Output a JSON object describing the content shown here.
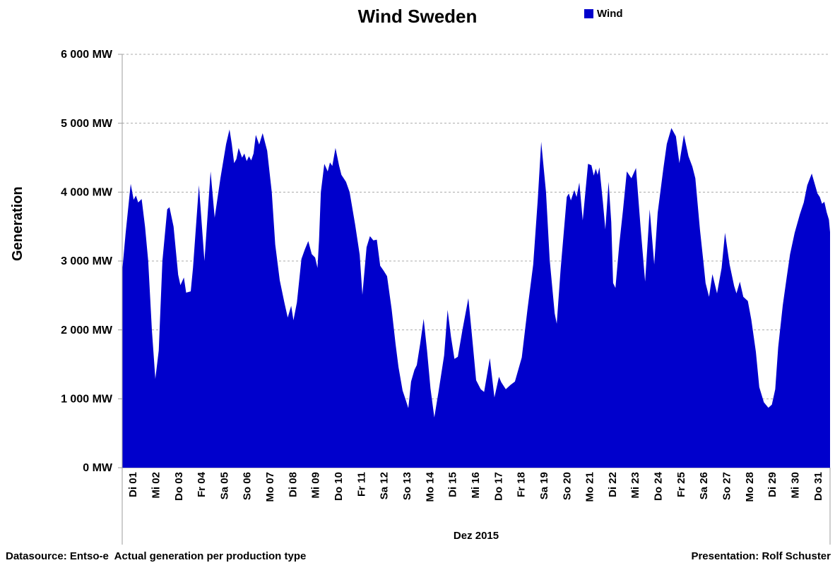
{
  "header": {
    "title": "Wind Sweden"
  },
  "legend": {
    "label": "Wind",
    "color": "#0000cc"
  },
  "y_axis": {
    "label": "Generation",
    "ticks": [
      "6 000 MW",
      "5 000 MW",
      "4 000 MW",
      "3 000 MW",
      "2 000 MW",
      "1 000 MW",
      "0 MW"
    ]
  },
  "x_axis": {
    "month_label": "Dez 2015",
    "days": [
      "Di 01",
      "Mi 02",
      "Do 03",
      "Fr 04",
      "Sa 05",
      "So 06",
      "Mo 07",
      "Di 08",
      "Mi 09",
      "Do 10",
      "Fr 11",
      "Sa 12",
      "So 13",
      "Mo 14",
      "Di 15",
      "Mi 16",
      "Do 17",
      "Fr 18",
      "Sa 19",
      "So 20",
      "Mo 21",
      "Di 22",
      "Mi 23",
      "Do 24",
      "Fr 25",
      "Sa 26",
      "So 27",
      "Mo 28",
      "Di 29",
      "Mi 30",
      "Do 31"
    ]
  },
  "footer": {
    "left": "Datasource: Entso-e  Actual generation per production type",
    "right": "Presentation: Rolf Schuster"
  },
  "colors": {
    "area": "#0000cc",
    "gridline": "#ababab",
    "axis": "#9d9d9d",
    "text": "#000000"
  },
  "chart_data": {
    "type": "area",
    "title": "Wind Sweden",
    "xlabel": "Dez 2015",
    "ylabel": "Generation",
    "ylim": [
      0,
      6000
    ],
    "xlim_days": [
      0,
      31
    ],
    "grid": "horizontal-dashed",
    "legend_position": "top-right",
    "unit": "MW",
    "series": [
      {
        "name": "Wind",
        "color": "#0000cc",
        "x_unit": "fractional day of Dez 2015 (0 = start of Di 01)",
        "points": [
          [
            0.0,
            2850
          ],
          [
            0.15,
            3400
          ],
          [
            0.37,
            4120
          ],
          [
            0.5,
            3890
          ],
          [
            0.6,
            3950
          ],
          [
            0.7,
            3850
          ],
          [
            0.85,
            3900
          ],
          [
            1.0,
            3500
          ],
          [
            1.14,
            3000
          ],
          [
            1.3,
            2000
          ],
          [
            1.45,
            1290
          ],
          [
            1.6,
            1700
          ],
          [
            1.76,
            3000
          ],
          [
            1.97,
            3750
          ],
          [
            2.07,
            3780
          ],
          [
            2.25,
            3500
          ],
          [
            2.45,
            2800
          ],
          [
            2.55,
            2650
          ],
          [
            2.7,
            2760
          ],
          [
            2.8,
            2540
          ],
          [
            3.0,
            2560
          ],
          [
            3.1,
            2900
          ],
          [
            3.36,
            4100
          ],
          [
            3.6,
            3000
          ],
          [
            3.87,
            4300
          ],
          [
            4.05,
            3630
          ],
          [
            4.3,
            4200
          ],
          [
            4.55,
            4700
          ],
          [
            4.7,
            4910
          ],
          [
            4.8,
            4700
          ],
          [
            4.9,
            4420
          ],
          [
            5.0,
            4480
          ],
          [
            5.1,
            4640
          ],
          [
            5.25,
            4500
          ],
          [
            5.35,
            4560
          ],
          [
            5.45,
            4450
          ],
          [
            5.55,
            4520
          ],
          [
            5.65,
            4460
          ],
          [
            5.75,
            4560
          ],
          [
            5.85,
            4830
          ],
          [
            6.0,
            4690
          ],
          [
            6.15,
            4855
          ],
          [
            6.35,
            4600
          ],
          [
            6.55,
            4000
          ],
          [
            6.7,
            3240
          ],
          [
            6.9,
            2720
          ],
          [
            7.1,
            2400
          ],
          [
            7.25,
            2180
          ],
          [
            7.4,
            2350
          ],
          [
            7.5,
            2140
          ],
          [
            7.65,
            2400
          ],
          [
            7.85,
            3030
          ],
          [
            8.0,
            3170
          ],
          [
            8.15,
            3290
          ],
          [
            8.3,
            3100
          ],
          [
            8.45,
            3050
          ],
          [
            8.55,
            2900
          ],
          [
            8.62,
            3300
          ],
          [
            8.7,
            4000
          ],
          [
            8.85,
            4410
          ],
          [
            9.0,
            4300
          ],
          [
            9.1,
            4430
          ],
          [
            9.2,
            4380
          ],
          [
            9.34,
            4640
          ],
          [
            9.5,
            4380
          ],
          [
            9.6,
            4250
          ],
          [
            9.8,
            4150
          ],
          [
            9.96,
            4000
          ],
          [
            10.2,
            3530
          ],
          [
            10.4,
            3090
          ],
          [
            10.52,
            2510
          ],
          [
            10.7,
            3200
          ],
          [
            10.85,
            3360
          ],
          [
            11.0,
            3300
          ],
          [
            11.15,
            3310
          ],
          [
            11.3,
            2930
          ],
          [
            11.45,
            2860
          ],
          [
            11.6,
            2780
          ],
          [
            11.8,
            2300
          ],
          [
            11.97,
            1800
          ],
          [
            12.1,
            1460
          ],
          [
            12.28,
            1120
          ],
          [
            12.4,
            1000
          ],
          [
            12.53,
            865
          ],
          [
            12.65,
            1250
          ],
          [
            12.8,
            1420
          ],
          [
            12.9,
            1490
          ],
          [
            13.05,
            1800
          ],
          [
            13.2,
            2160
          ],
          [
            13.35,
            1700
          ],
          [
            13.5,
            1150
          ],
          [
            13.67,
            730
          ],
          [
            13.85,
            1100
          ],
          [
            14.1,
            1630
          ],
          [
            14.25,
            2290
          ],
          [
            14.4,
            1900
          ],
          [
            14.55,
            1580
          ],
          [
            14.7,
            1610
          ],
          [
            14.9,
            2000
          ],
          [
            15.16,
            2460
          ],
          [
            15.35,
            1800
          ],
          [
            15.5,
            1270
          ],
          [
            15.7,
            1140
          ],
          [
            15.85,
            1100
          ],
          [
            16.1,
            1590
          ],
          [
            16.3,
            1020
          ],
          [
            16.5,
            1320
          ],
          [
            16.6,
            1240
          ],
          [
            16.8,
            1140
          ],
          [
            17.0,
            1200
          ],
          [
            17.2,
            1250
          ],
          [
            17.5,
            1600
          ],
          [
            17.75,
            2300
          ],
          [
            18.0,
            2950
          ],
          [
            18.2,
            3900
          ],
          [
            18.35,
            4730
          ],
          [
            18.56,
            4000
          ],
          [
            18.72,
            3020
          ],
          [
            18.94,
            2240
          ],
          [
            19.03,
            2090
          ],
          [
            19.2,
            2880
          ],
          [
            19.47,
            3930
          ],
          [
            19.56,
            3980
          ],
          [
            19.65,
            3880
          ],
          [
            19.8,
            4030
          ],
          [
            19.9,
            3930
          ],
          [
            20.02,
            4140
          ],
          [
            20.17,
            3590
          ],
          [
            20.4,
            4410
          ],
          [
            20.55,
            4390
          ],
          [
            20.65,
            4240
          ],
          [
            20.74,
            4340
          ],
          [
            20.82,
            4250
          ],
          [
            20.9,
            4360
          ],
          [
            21.05,
            3860
          ],
          [
            21.16,
            3460
          ],
          [
            21.3,
            4150
          ],
          [
            21.42,
            3560
          ],
          [
            21.5,
            2680
          ],
          [
            21.6,
            2610
          ],
          [
            21.77,
            3250
          ],
          [
            21.93,
            3730
          ],
          [
            22.1,
            4300
          ],
          [
            22.3,
            4200
          ],
          [
            22.5,
            4350
          ],
          [
            22.7,
            3500
          ],
          [
            22.9,
            2700
          ],
          [
            23.1,
            3750
          ],
          [
            23.3,
            2950
          ],
          [
            23.45,
            3700
          ],
          [
            23.7,
            4340
          ],
          [
            23.85,
            4700
          ],
          [
            24.05,
            4930
          ],
          [
            24.25,
            4810
          ],
          [
            24.4,
            4420
          ],
          [
            24.6,
            4830
          ],
          [
            24.8,
            4520
          ],
          [
            24.97,
            4370
          ],
          [
            25.1,
            4200
          ],
          [
            25.3,
            3460
          ],
          [
            25.45,
            3000
          ],
          [
            25.55,
            2680
          ],
          [
            25.7,
            2480
          ],
          [
            25.85,
            2810
          ],
          [
            26.05,
            2530
          ],
          [
            26.25,
            2900
          ],
          [
            26.4,
            3410
          ],
          [
            26.6,
            2950
          ],
          [
            26.8,
            2640
          ],
          [
            26.9,
            2530
          ],
          [
            27.05,
            2700
          ],
          [
            27.2,
            2480
          ],
          [
            27.4,
            2420
          ],
          [
            27.55,
            2150
          ],
          [
            27.75,
            1680
          ],
          [
            27.9,
            1170
          ],
          [
            28.1,
            950
          ],
          [
            28.3,
            870
          ],
          [
            28.45,
            915
          ],
          [
            28.6,
            1140
          ],
          [
            28.73,
            1750
          ],
          [
            28.93,
            2360
          ],
          [
            29.1,
            2760
          ],
          [
            29.25,
            3100
          ],
          [
            29.45,
            3410
          ],
          [
            29.68,
            3680
          ],
          [
            29.85,
            3850
          ],
          [
            30.0,
            4100
          ],
          [
            30.2,
            4270
          ],
          [
            30.45,
            3980
          ],
          [
            30.55,
            3930
          ],
          [
            30.65,
            3830
          ],
          [
            30.75,
            3860
          ],
          [
            30.85,
            3710
          ],
          [
            30.95,
            3600
          ],
          [
            31.0,
            3420
          ]
        ]
      }
    ]
  }
}
